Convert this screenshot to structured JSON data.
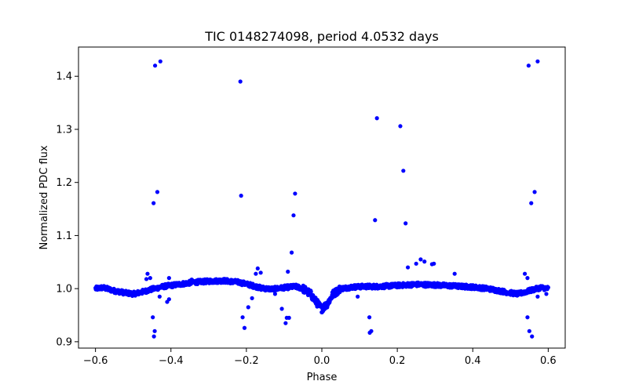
{
  "chart_data": {
    "type": "scatter",
    "title": "TIC 0148274098, period 4.0532 days",
    "xlabel": "Phase",
    "ylabel": "Normalized PDC flux",
    "xlim": [
      -0.645,
      0.645
    ],
    "ylim": [
      0.888,
      1.455
    ],
    "xticks": [
      -0.6,
      -0.4,
      -0.2,
      0.0,
      0.2,
      0.4,
      0.6
    ],
    "xtick_labels": [
      "−0.6",
      "−0.4",
      "−0.2",
      "0.0",
      "0.2",
      "0.4",
      "0.6"
    ],
    "yticks": [
      0.9,
      1.0,
      1.1,
      1.2,
      1.3,
      1.4
    ],
    "ytick_labels": [
      "0.9",
      "1.0",
      "1.1",
      "1.2",
      "1.3",
      "1.4"
    ],
    "grid": false,
    "marker_color": "#0000ff",
    "baseline_model": [
      [
        -0.6,
        1.0
      ],
      [
        -0.58,
        1.002
      ],
      [
        -0.55,
        0.996
      ],
      [
        -0.52,
        0.992
      ],
      [
        -0.5,
        0.99
      ],
      [
        -0.48,
        0.993
      ],
      [
        -0.45,
        0.999
      ],
      [
        -0.42,
        1.004
      ],
      [
        -0.38,
        1.008
      ],
      [
        -0.34,
        1.012
      ],
      [
        -0.3,
        1.014
      ],
      [
        -0.26,
        1.015
      ],
      [
        -0.22,
        1.012
      ],
      [
        -0.19,
        1.007
      ],
      [
        -0.16,
        1.001
      ],
      [
        -0.13,
        0.999
      ],
      [
        -0.1,
        1.002
      ],
      [
        -0.07,
        1.004
      ],
      [
        -0.05,
        1.0
      ],
      [
        -0.03,
        0.99
      ],
      [
        -0.015,
        0.975
      ],
      [
        0.0,
        0.962
      ],
      [
        0.015,
        0.972
      ],
      [
        0.03,
        0.99
      ],
      [
        0.05,
        1.0
      ],
      [
        0.08,
        1.003
      ],
      [
        0.11,
        1.004
      ],
      [
        0.15,
        1.004
      ],
      [
        0.2,
        1.006
      ],
      [
        0.25,
        1.008
      ],
      [
        0.3,
        1.007
      ],
      [
        0.35,
        1.005
      ],
      [
        0.4,
        1.003
      ],
      [
        0.44,
        1.0
      ],
      [
        0.47,
        0.996
      ],
      [
        0.5,
        0.992
      ],
      [
        0.52,
        0.99
      ],
      [
        0.55,
        0.996
      ],
      [
        0.58,
        1.002
      ],
      [
        0.6,
        1.0
      ]
    ],
    "outliers": [
      [
        -0.442,
        1.42
      ],
      [
        -0.428,
        1.428
      ],
      [
        0.548,
        1.42
      ],
      [
        0.572,
        1.428
      ],
      [
        -0.216,
        1.39
      ],
      [
        0.146,
        1.321
      ],
      [
        0.208,
        1.306
      ],
      [
        0.216,
        1.222
      ],
      [
        -0.436,
        1.182
      ],
      [
        -0.446,
        1.161
      ],
      [
        0.564,
        1.182
      ],
      [
        0.555,
        1.161
      ],
      [
        -0.214,
        1.175
      ],
      [
        -0.071,
        1.179
      ],
      [
        -0.075,
        1.138
      ],
      [
        0.141,
        1.129
      ],
      [
        0.222,
        1.123
      ],
      [
        -0.08,
        1.068
      ],
      [
        0.262,
        1.055
      ],
      [
        0.272,
        1.051
      ],
      [
        0.25,
        1.047
      ],
      [
        0.292,
        1.046
      ],
      [
        0.297,
        1.047
      ],
      [
        0.228,
        1.04
      ],
      [
        -0.17,
        1.038
      ],
      [
        -0.175,
        1.028
      ],
      [
        -0.162,
        1.03
      ],
      [
        -0.09,
        1.032
      ],
      [
        0.352,
        1.028
      ],
      [
        -0.462,
        1.028
      ],
      [
        -0.465,
        1.018
      ],
      [
        -0.455,
        1.02
      ],
      [
        0.538,
        1.028
      ],
      [
        0.545,
        1.02
      ],
      [
        -0.405,
        1.02
      ],
      [
        -0.345,
        1.017
      ],
      [
        -0.448,
        0.946
      ],
      [
        -0.443,
        0.92
      ],
      [
        -0.445,
        0.91
      ],
      [
        0.545,
        0.946
      ],
      [
        0.55,
        0.92
      ],
      [
        0.557,
        0.91
      ],
      [
        -0.21,
        0.946
      ],
      [
        -0.205,
        0.926
      ],
      [
        -0.195,
        0.965
      ],
      [
        -0.106,
        0.962
      ],
      [
        -0.093,
        0.945
      ],
      [
        -0.096,
        0.935
      ],
      [
        -0.087,
        0.945
      ],
      [
        0.126,
        0.946
      ],
      [
        0.131,
        0.92
      ],
      [
        0.127,
        0.917
      ],
      [
        -0.43,
        0.985
      ],
      [
        -0.405,
        0.98
      ],
      [
        -0.41,
        0.975
      ],
      [
        0.572,
        0.985
      ],
      [
        0.595,
        0.99
      ],
      [
        -0.185,
        0.982
      ],
      [
        -0.124,
        0.99
      ],
      [
        0.095,
        0.985
      ]
    ]
  }
}
